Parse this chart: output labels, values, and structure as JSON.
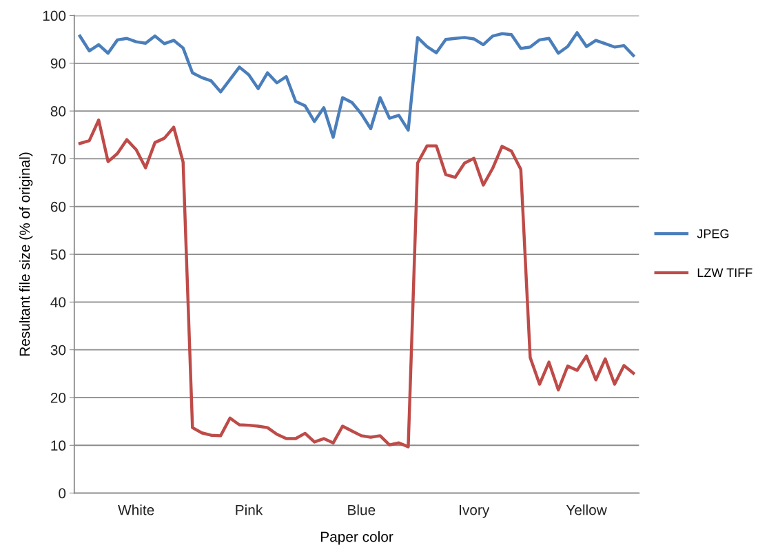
{
  "chart_data": {
    "type": "line",
    "xlabel": "Paper color",
    "ylabel": "Resultant file size (% of original)",
    "categories": [
      null,
      null,
      null,
      null,
      null,
      null,
      "White",
      null,
      null,
      null,
      null,
      null,
      null,
      null,
      null,
      null,
      null,
      null,
      "Pink",
      null,
      null,
      null,
      null,
      null,
      null,
      null,
      null,
      null,
      null,
      null,
      "Blue",
      null,
      null,
      null,
      null,
      null,
      null,
      null,
      null,
      null,
      null,
      null,
      "Ivory",
      null,
      null,
      null,
      null,
      null,
      null,
      null,
      null,
      null,
      null,
      null,
      "Yellow",
      null,
      null,
      null,
      null,
      null
    ],
    "ylim": [
      0,
      100
    ],
    "yticks": [
      0,
      10,
      20,
      30,
      40,
      50,
      60,
      70,
      80,
      90,
      100
    ],
    "grid": "y",
    "legend": "right",
    "marker": "none",
    "line_style": "solid",
    "series": [
      {
        "name": "JPEG",
        "color": "#4a7ebb",
        "values": [
          95.7,
          92.6,
          93.9,
          92.1,
          94.9,
          95.2,
          94.5,
          94.2,
          95.7,
          94.1,
          94.8,
          93.2,
          88.0,
          87.0,
          86.3,
          84.0,
          86.6,
          89.2,
          87.6,
          84.7,
          88.0,
          85.9,
          87.2,
          82.0,
          81.1,
          77.8,
          80.7,
          74.5,
          82.8,
          81.8,
          79.4,
          76.3,
          82.8,
          78.5,
          79.1,
          76.0,
          95.4,
          93.5,
          92.2,
          95.0,
          95.2,
          95.4,
          95.1,
          93.9,
          95.7,
          96.2,
          96.0,
          93.1,
          93.4,
          94.9,
          95.2,
          92.1,
          93.5,
          96.4,
          93.5,
          94.8,
          94.1,
          93.4,
          93.7,
          91.6
        ]
      },
      {
        "name": "LZW TIFF",
        "color": "#be4b48",
        "values": [
          73.2,
          73.8,
          78.1,
          69.4,
          71.1,
          74.0,
          71.9,
          68.1,
          73.4,
          74.3,
          76.6,
          69.3,
          13.7,
          12.6,
          12.1,
          12.0,
          15.7,
          14.3,
          14.2,
          14.0,
          13.7,
          12.3,
          11.4,
          11.4,
          12.5,
          10.7,
          11.4,
          10.5,
          14.0,
          13.0,
          12.0,
          11.7,
          12.0,
          10.1,
          10.5,
          9.7,
          69.1,
          72.7,
          72.7,
          66.7,
          66.1,
          69.1,
          70.1,
          64.5,
          68.0,
          72.6,
          71.6,
          67.8,
          28.4,
          22.8,
          27.4,
          21.6,
          26.6,
          25.7,
          28.7,
          23.7,
          28.1,
          22.8,
          26.7,
          25.1
        ]
      }
    ]
  }
}
